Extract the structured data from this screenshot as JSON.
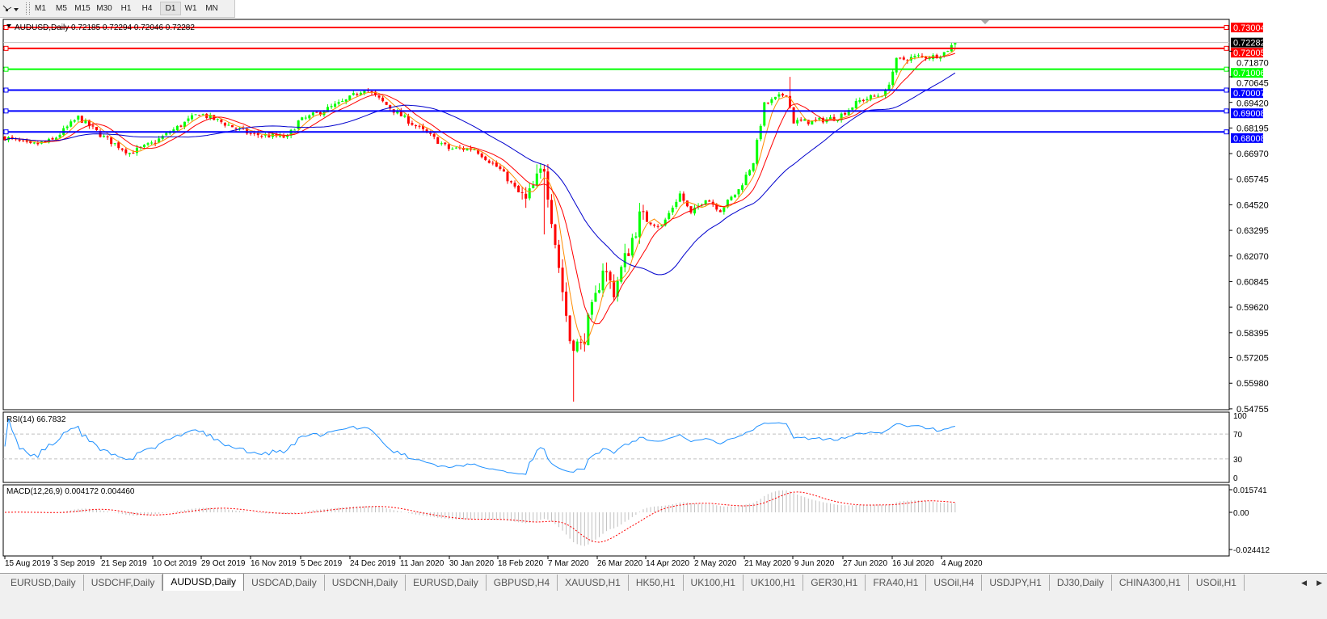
{
  "toolbar": {
    "tool_icon": "line-tools-icon",
    "timeframes": [
      "M1",
      "M5",
      "M15",
      "M30",
      "H1",
      "H4",
      "D1",
      "W1",
      "MN"
    ],
    "active_timeframe": "D1"
  },
  "chart": {
    "title": "AUDUSD,Daily  0.72185 0.72294 0.72046 0.72282",
    "current_price": "0.72282",
    "price_ticks": [
      "0.71870",
      "0.70645",
      "0.69420",
      "0.68195",
      "0.66970",
      "0.65745",
      "0.64520",
      "0.63295",
      "0.62070",
      "0.60845",
      "0.59620",
      "0.58395",
      "0.57205",
      "0.55980",
      "0.54755"
    ],
    "levels": [
      {
        "price": "0.73004",
        "color": "#ff0000"
      },
      {
        "price": "0.72005",
        "color": "#ff0000"
      },
      {
        "price": "0.71006",
        "color": "#00ff00"
      },
      {
        "price": "0.70007",
        "color": "#0000ff"
      },
      {
        "price": "0.69008",
        "color": "#0000ff"
      },
      {
        "price": "0.68008",
        "color": "#0000ff"
      }
    ],
    "date_ticks": [
      "15 Aug 2019",
      "3 Sep 2019",
      "21 Sep 2019",
      "10 Oct 2019",
      "29 Oct 2019",
      "16 Nov 2019",
      "5 Dec 2019",
      "24 Dec 2019",
      "11 Jan 2020",
      "30 Jan 2020",
      "18 Feb 2020",
      "7 Mar 2020",
      "26 Mar 2020",
      "14 Apr 2020",
      "2 May 2020",
      "21 May 2020",
      "9 Jun 2020",
      "27 Jun 2020",
      "16 Jul 2020",
      "4 Aug 2020"
    ],
    "colors": {
      "bull": "#00ff00",
      "bear": "#ff0000",
      "ma_fast": "#ff8c00",
      "ma_mid": "#ff0000",
      "ma_slow": "#0000cd",
      "rsi": "#1e90ff",
      "macd_signal": "#ff0000",
      "macd_hist": "#c0c0c0"
    }
  },
  "rsi": {
    "label": "RSI(14) 66.7832",
    "ticks": [
      "100",
      "70",
      "30",
      "0"
    ]
  },
  "macd": {
    "label": "MACD(12,26,9) 0.004172 0.004460",
    "ticks": [
      "0.015741",
      "0.00",
      "-0.024412"
    ]
  },
  "chart_data": {
    "type": "candlestick",
    "symbol": "AUDUSD",
    "timeframe": "Daily",
    "ylim": [
      0.54755,
      0.73004
    ],
    "approx_close_path": [
      [
        "2019-08-15",
        0.6775
      ],
      [
        "2019-08-26",
        0.6736
      ],
      [
        "2019-09-03",
        0.676
      ],
      [
        "2019-09-12",
        0.687
      ],
      [
        "2019-09-23",
        0.6775
      ],
      [
        "2019-10-02",
        0.67
      ],
      [
        "2019-10-10",
        0.6743
      ],
      [
        "2019-10-29",
        0.689
      ],
      [
        "2019-11-18",
        0.679
      ],
      [
        "2019-12-02",
        0.6775
      ],
      [
        "2019-12-05",
        0.685
      ],
      [
        "2019-12-24",
        0.695
      ],
      [
        "2019-12-31",
        0.701
      ],
      [
        "2020-01-13",
        0.689
      ],
      [
        "2020-01-31",
        0.672
      ],
      [
        "2020-02-11",
        0.672
      ],
      [
        "2020-02-20",
        0.662
      ],
      [
        "2020-03-02",
        0.6465
      ],
      [
        "2020-03-09",
        0.6638
      ],
      [
        "2020-03-13",
        0.6156
      ],
      [
        "2020-03-18",
        0.5808
      ],
      [
        "2020-03-23",
        0.577
      ],
      [
        "2020-03-27",
        0.6
      ],
      [
        "2020-03-31",
        0.6156
      ],
      [
        "2020-04-03",
        0.604
      ],
      [
        "2020-04-14",
        0.639
      ],
      [
        "2020-04-22",
        0.6349
      ],
      [
        "2020-04-29",
        0.6504
      ],
      [
        "2020-05-04",
        0.6407
      ],
      [
        "2020-05-08",
        0.6485
      ],
      [
        "2020-05-14",
        0.6427
      ],
      [
        "2020-05-21",
        0.6523
      ],
      [
        "2020-05-27",
        0.6659
      ],
      [
        "2020-06-01",
        0.693
      ],
      [
        "2020-06-09",
        0.6987
      ],
      [
        "2020-06-11",
        0.685
      ],
      [
        "2020-06-18",
        0.685
      ],
      [
        "2020-06-29",
        0.687
      ],
      [
        "2020-07-07",
        0.695
      ],
      [
        "2020-07-16",
        0.6987
      ],
      [
        "2020-07-21",
        0.7142
      ],
      [
        "2020-07-29",
        0.7161
      ],
      [
        "2020-08-04",
        0.7161
      ],
      [
        "2020-08-07",
        0.718
      ],
      [
        "2020-08-12",
        0.7228
      ]
    ],
    "extremes": [
      [
        "2020-03-19",
        "low",
        0.551
      ],
      [
        "2020-03-09",
        "low",
        0.631
      ],
      [
        "2020-06-10",
        "high",
        0.7064
      ]
    ]
  },
  "tabs": {
    "items": [
      "EURUSD,Daily",
      "USDCHF,Daily",
      "AUDUSD,Daily",
      "USDCAD,Daily",
      "USDCNH,Daily",
      "EURUSD,Daily",
      "GBPUSD,H4",
      "XAUUSD,H1",
      "HK50,H1",
      "UK100,H1",
      "UK100,H1",
      "GER30,H1",
      "FRA40,H1",
      "USOil,H4",
      "USDJPY,H1",
      "DJ30,Daily",
      "CHINA300,H1",
      "USOil,H1"
    ],
    "active": 2,
    "prev_icon": "scroll-left-icon",
    "next_icon": "scroll-right-icon"
  }
}
